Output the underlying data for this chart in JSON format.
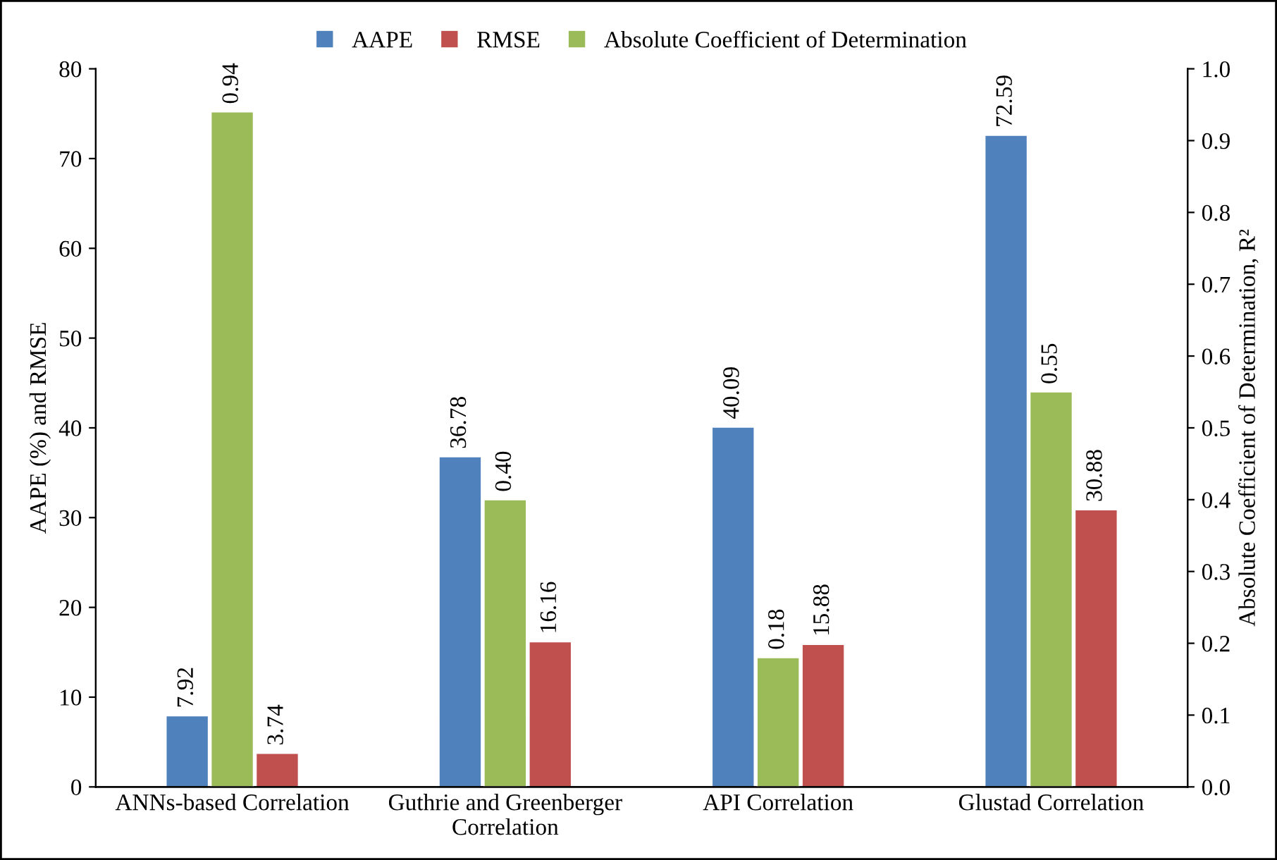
{
  "chart_data": {
    "type": "bar",
    "categories": [
      "ANNs-based Correlation",
      "Guthrie and Greenberger\nCorrelation",
      "API Correlation",
      "Glustad Correlation"
    ],
    "ylabel": "AAPE (%) and RMSE",
    "y2label": "Absolute Coefficient of Determination, R²",
    "series": [
      {
        "name": "AAPE",
        "color": "#4f81bd",
        "values": [
          7.92,
          36.78,
          40.09,
          72.59
        ],
        "value_labels": [
          "7.92",
          "36.78",
          "40.09",
          "72.59"
        ]
      },
      {
        "name": "RMSE",
        "color": "#c0504d",
        "values": [
          3.74,
          16.16,
          15.88,
          30.88
        ],
        "value_labels": [
          "3.74",
          "16.16",
          "15.88",
          "30.88"
        ]
      },
      {
        "name": "Absolute Coefficient of Determination",
        "color": "#9bbb59",
        "axis": "y2",
        "values": [
          0.94,
          0.4,
          0.18,
          0.55
        ],
        "value_labels": [
          "0.94",
          "0.40",
          "0.18",
          "0.55"
        ]
      }
    ],
    "ylim": [
      0,
      80
    ],
    "yticks": [
      0,
      10,
      20,
      30,
      40,
      50,
      60,
      70,
      80
    ],
    "y2lim": [
      0,
      1
    ],
    "y2ticks": [
      {
        "value": 0,
        "label": "0.0"
      },
      {
        "value": 0.1,
        "label": "0.1"
      },
      {
        "value": 0.2,
        "label": "0.2"
      },
      {
        "value": 0.3,
        "label": "0.3"
      },
      {
        "value": 0.4,
        "label": "0.4"
      },
      {
        "value": 0.5,
        "label": "0.5"
      },
      {
        "value": 0.6,
        "label": "0.6"
      },
      {
        "value": 0.7,
        "label": "0.7"
      },
      {
        "value": 0.8,
        "label": "0.8"
      },
      {
        "value": 0.9,
        "label": "0.9"
      },
      {
        "value": 1.0,
        "label": "1.0"
      }
    ],
    "legend": "top",
    "grid": false
  }
}
